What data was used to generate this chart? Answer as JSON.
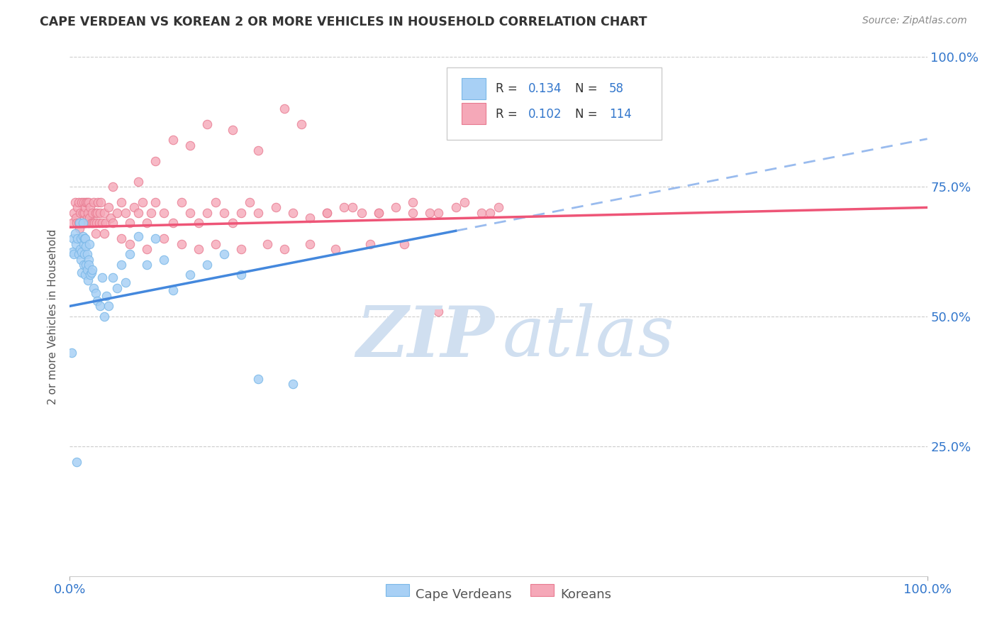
{
  "title": "CAPE VERDEAN VS KOREAN 2 OR MORE VEHICLES IN HOUSEHOLD CORRELATION CHART",
  "source": "Source: ZipAtlas.com",
  "ylabel": "2 or more Vehicles in Household",
  "cape_verdean_color_fill": "#a8d0f5",
  "cape_verdean_color_edge": "#7ab8e8",
  "korean_color_fill": "#f5a8b8",
  "korean_color_edge": "#e87a90",
  "trend_cv_color": "#4488dd",
  "trend_ko_color": "#ee5577",
  "trend_cv_dash_color": "#99bbee",
  "watermark_color": "#d0dff0",
  "legend_box_color": "#dddddd",
  "cv_scatter_x": [
    0.002,
    0.003,
    0.004,
    0.005,
    0.006,
    0.007,
    0.008,
    0.009,
    0.01,
    0.011,
    0.012,
    0.013,
    0.013,
    0.014,
    0.014,
    0.015,
    0.015,
    0.016,
    0.016,
    0.017,
    0.017,
    0.018,
    0.018,
    0.019,
    0.019,
    0.02,
    0.02,
    0.021,
    0.022,
    0.022,
    0.023,
    0.024,
    0.025,
    0.026,
    0.028,
    0.03,
    0.032,
    0.035,
    0.038,
    0.04,
    0.043,
    0.045,
    0.05,
    0.055,
    0.06,
    0.065,
    0.07,
    0.08,
    0.09,
    0.1,
    0.11,
    0.12,
    0.14,
    0.16,
    0.18,
    0.2,
    0.22,
    0.26
  ],
  "cv_scatter_y": [
    0.43,
    0.625,
    0.65,
    0.62,
    0.66,
    0.64,
    0.22,
    0.65,
    0.62,
    0.68,
    0.63,
    0.61,
    0.65,
    0.585,
    0.625,
    0.655,
    0.68,
    0.6,
    0.64,
    0.62,
    0.65,
    0.58,
    0.65,
    0.6,
    0.635,
    0.59,
    0.62,
    0.57,
    0.61,
    0.6,
    0.64,
    0.58,
    0.585,
    0.59,
    0.555,
    0.545,
    0.53,
    0.52,
    0.575,
    0.5,
    0.54,
    0.52,
    0.575,
    0.555,
    0.6,
    0.565,
    0.62,
    0.655,
    0.6,
    0.65,
    0.61,
    0.55,
    0.58,
    0.6,
    0.62,
    0.58,
    0.38,
    0.37
  ],
  "ko_scatter_x": [
    0.003,
    0.005,
    0.006,
    0.007,
    0.008,
    0.009,
    0.01,
    0.01,
    0.011,
    0.012,
    0.013,
    0.014,
    0.015,
    0.015,
    0.016,
    0.017,
    0.017,
    0.018,
    0.018,
    0.019,
    0.02,
    0.02,
    0.021,
    0.022,
    0.022,
    0.023,
    0.024,
    0.025,
    0.026,
    0.027,
    0.028,
    0.029,
    0.03,
    0.031,
    0.032,
    0.033,
    0.034,
    0.035,
    0.036,
    0.038,
    0.04,
    0.042,
    0.045,
    0.048,
    0.05,
    0.055,
    0.06,
    0.065,
    0.07,
    0.075,
    0.08,
    0.085,
    0.09,
    0.095,
    0.1,
    0.11,
    0.12,
    0.13,
    0.14,
    0.15,
    0.16,
    0.17,
    0.18,
    0.19,
    0.2,
    0.21,
    0.22,
    0.24,
    0.26,
    0.28,
    0.3,
    0.32,
    0.34,
    0.36,
    0.38,
    0.4,
    0.42,
    0.45,
    0.48,
    0.5,
    0.05,
    0.08,
    0.1,
    0.12,
    0.14,
    0.16,
    0.19,
    0.22,
    0.25,
    0.27,
    0.3,
    0.33,
    0.36,
    0.4,
    0.43,
    0.46,
    0.49,
    0.03,
    0.04,
    0.06,
    0.07,
    0.09,
    0.11,
    0.13,
    0.15,
    0.17,
    0.2,
    0.23,
    0.25,
    0.28,
    0.31,
    0.35,
    0.39,
    0.43
  ],
  "ko_scatter_y": [
    0.68,
    0.7,
    0.72,
    0.69,
    0.68,
    0.71,
    0.72,
    0.68,
    0.67,
    0.7,
    0.68,
    0.72,
    0.7,
    0.68,
    0.72,
    0.7,
    0.68,
    0.71,
    0.68,
    0.72,
    0.72,
    0.69,
    0.7,
    0.68,
    0.72,
    0.69,
    0.71,
    0.68,
    0.7,
    0.68,
    0.72,
    0.68,
    0.7,
    0.68,
    0.7,
    0.72,
    0.68,
    0.7,
    0.72,
    0.68,
    0.7,
    0.68,
    0.71,
    0.69,
    0.68,
    0.7,
    0.72,
    0.7,
    0.68,
    0.71,
    0.7,
    0.72,
    0.68,
    0.7,
    0.72,
    0.7,
    0.68,
    0.72,
    0.7,
    0.68,
    0.7,
    0.72,
    0.7,
    0.68,
    0.7,
    0.72,
    0.7,
    0.71,
    0.7,
    0.69,
    0.7,
    0.71,
    0.7,
    0.7,
    0.71,
    0.7,
    0.7,
    0.71,
    0.7,
    0.71,
    0.75,
    0.76,
    0.8,
    0.84,
    0.83,
    0.87,
    0.86,
    0.82,
    0.9,
    0.87,
    0.7,
    0.71,
    0.7,
    0.72,
    0.7,
    0.72,
    0.7,
    0.66,
    0.66,
    0.65,
    0.64,
    0.63,
    0.65,
    0.64,
    0.63,
    0.64,
    0.63,
    0.64,
    0.63,
    0.64,
    0.63,
    0.64,
    0.64,
    0.51
  ],
  "cv_trend_x0": 0.0,
  "cv_trend_x1": 0.45,
  "cv_trend_y0": 0.52,
  "cv_trend_y1": 0.665,
  "ko_trend_x0": 0.0,
  "ko_trend_x1": 1.0,
  "ko_trend_y0": 0.672,
  "ko_trend_y1": 0.71,
  "xlim": [
    0,
    1
  ],
  "ylim": [
    0,
    1
  ],
  "ytick_vals": [
    0.25,
    0.5,
    0.75,
    1.0
  ],
  "ytick_labels": [
    "25.0%",
    "50.0%",
    "75.0%",
    "100.0%"
  ]
}
